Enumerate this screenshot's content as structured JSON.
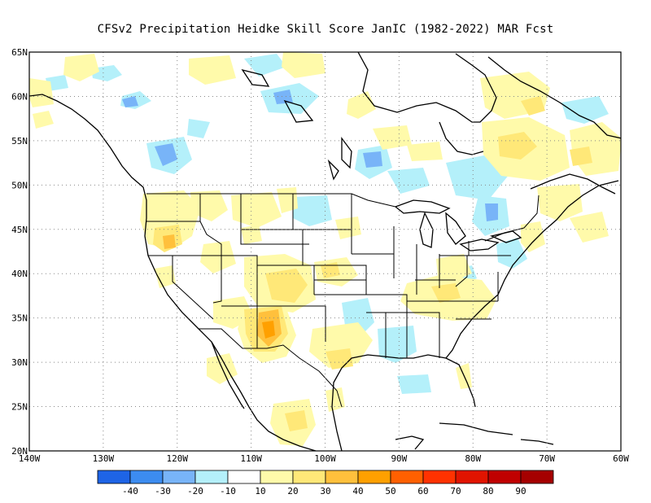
{
  "title": "CFSv2  Precipitation Heidke Skill Score JanIC (1982-2022) MAR Fcst",
  "map": {
    "lon_range": [
      -140,
      -60
    ],
    "lat_range": [
      20,
      65
    ],
    "lat_labels": [
      {
        "text": "65N",
        "lat": 65
      },
      {
        "text": "60N",
        "lat": 60
      },
      {
        "text": "55N",
        "lat": 55
      },
      {
        "text": "50N",
        "lat": 50
      },
      {
        "text": "45N",
        "lat": 45
      },
      {
        "text": "40N",
        "lat": 40
      },
      {
        "text": "35N",
        "lat": 35
      },
      {
        "text": "30N",
        "lat": 30
      },
      {
        "text": "25N",
        "lat": 25
      },
      {
        "text": "20N",
        "lat": 20
      }
    ],
    "lon_labels": [
      {
        "text": "140W",
        "lon": -140
      },
      {
        "text": "130W",
        "lon": -130
      },
      {
        "text": "120W",
        "lon": -120
      },
      {
        "text": "110W",
        "lon": -110
      },
      {
        "text": "100W",
        "lon": -100
      },
      {
        "text": "90W",
        "lon": -90
      },
      {
        "text": "80W",
        "lon": -80
      },
      {
        "text": "70W",
        "lon": -70
      },
      {
        "text": "60W",
        "lon": -60
      }
    ],
    "gridlines": "dotted"
  },
  "colorbar": {
    "colors": [
      "#1e64e6",
      "#3c8cf0",
      "#78b4f8",
      "#b4f0fa",
      "#ffffff",
      "#fffaaa",
      "#ffe878",
      "#ffc03c",
      "#ffa000",
      "#ff6000",
      "#ff3200",
      "#e11400",
      "#c00000",
      "#a50000"
    ],
    "labels": [
      "-40",
      "-30",
      "-20",
      "-10",
      "10",
      "20",
      "30",
      "40",
      "50",
      "60",
      "70",
      "80",
      "90"
    ]
  }
}
